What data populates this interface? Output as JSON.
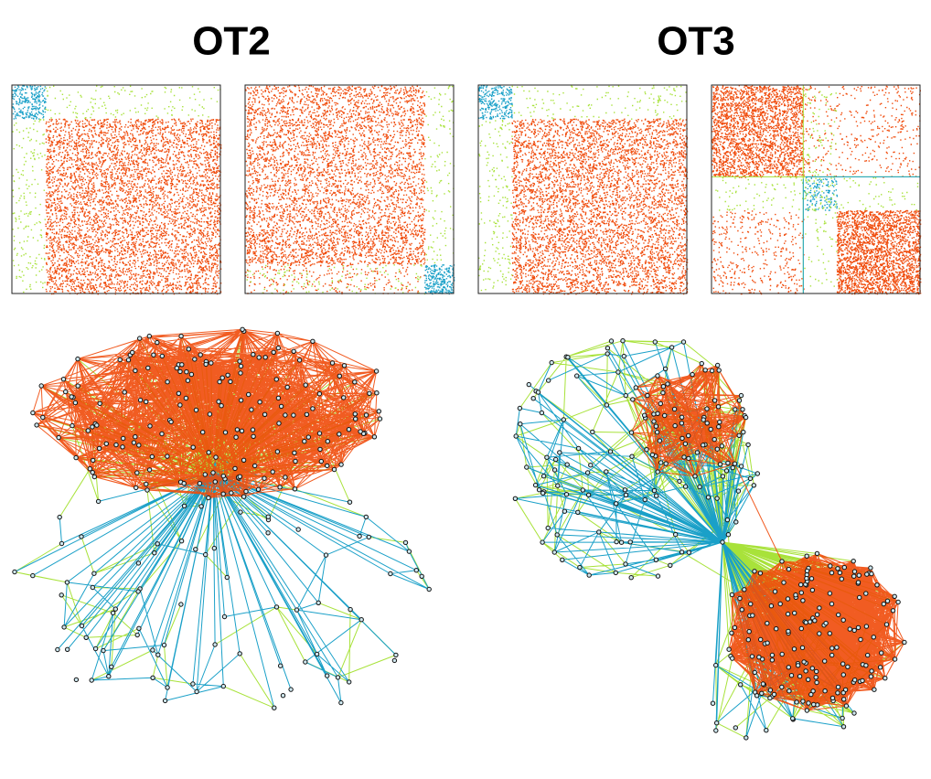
{
  "panels": [
    {
      "title": "OT2"
    },
    {
      "title": "OT3"
    }
  ]
}
